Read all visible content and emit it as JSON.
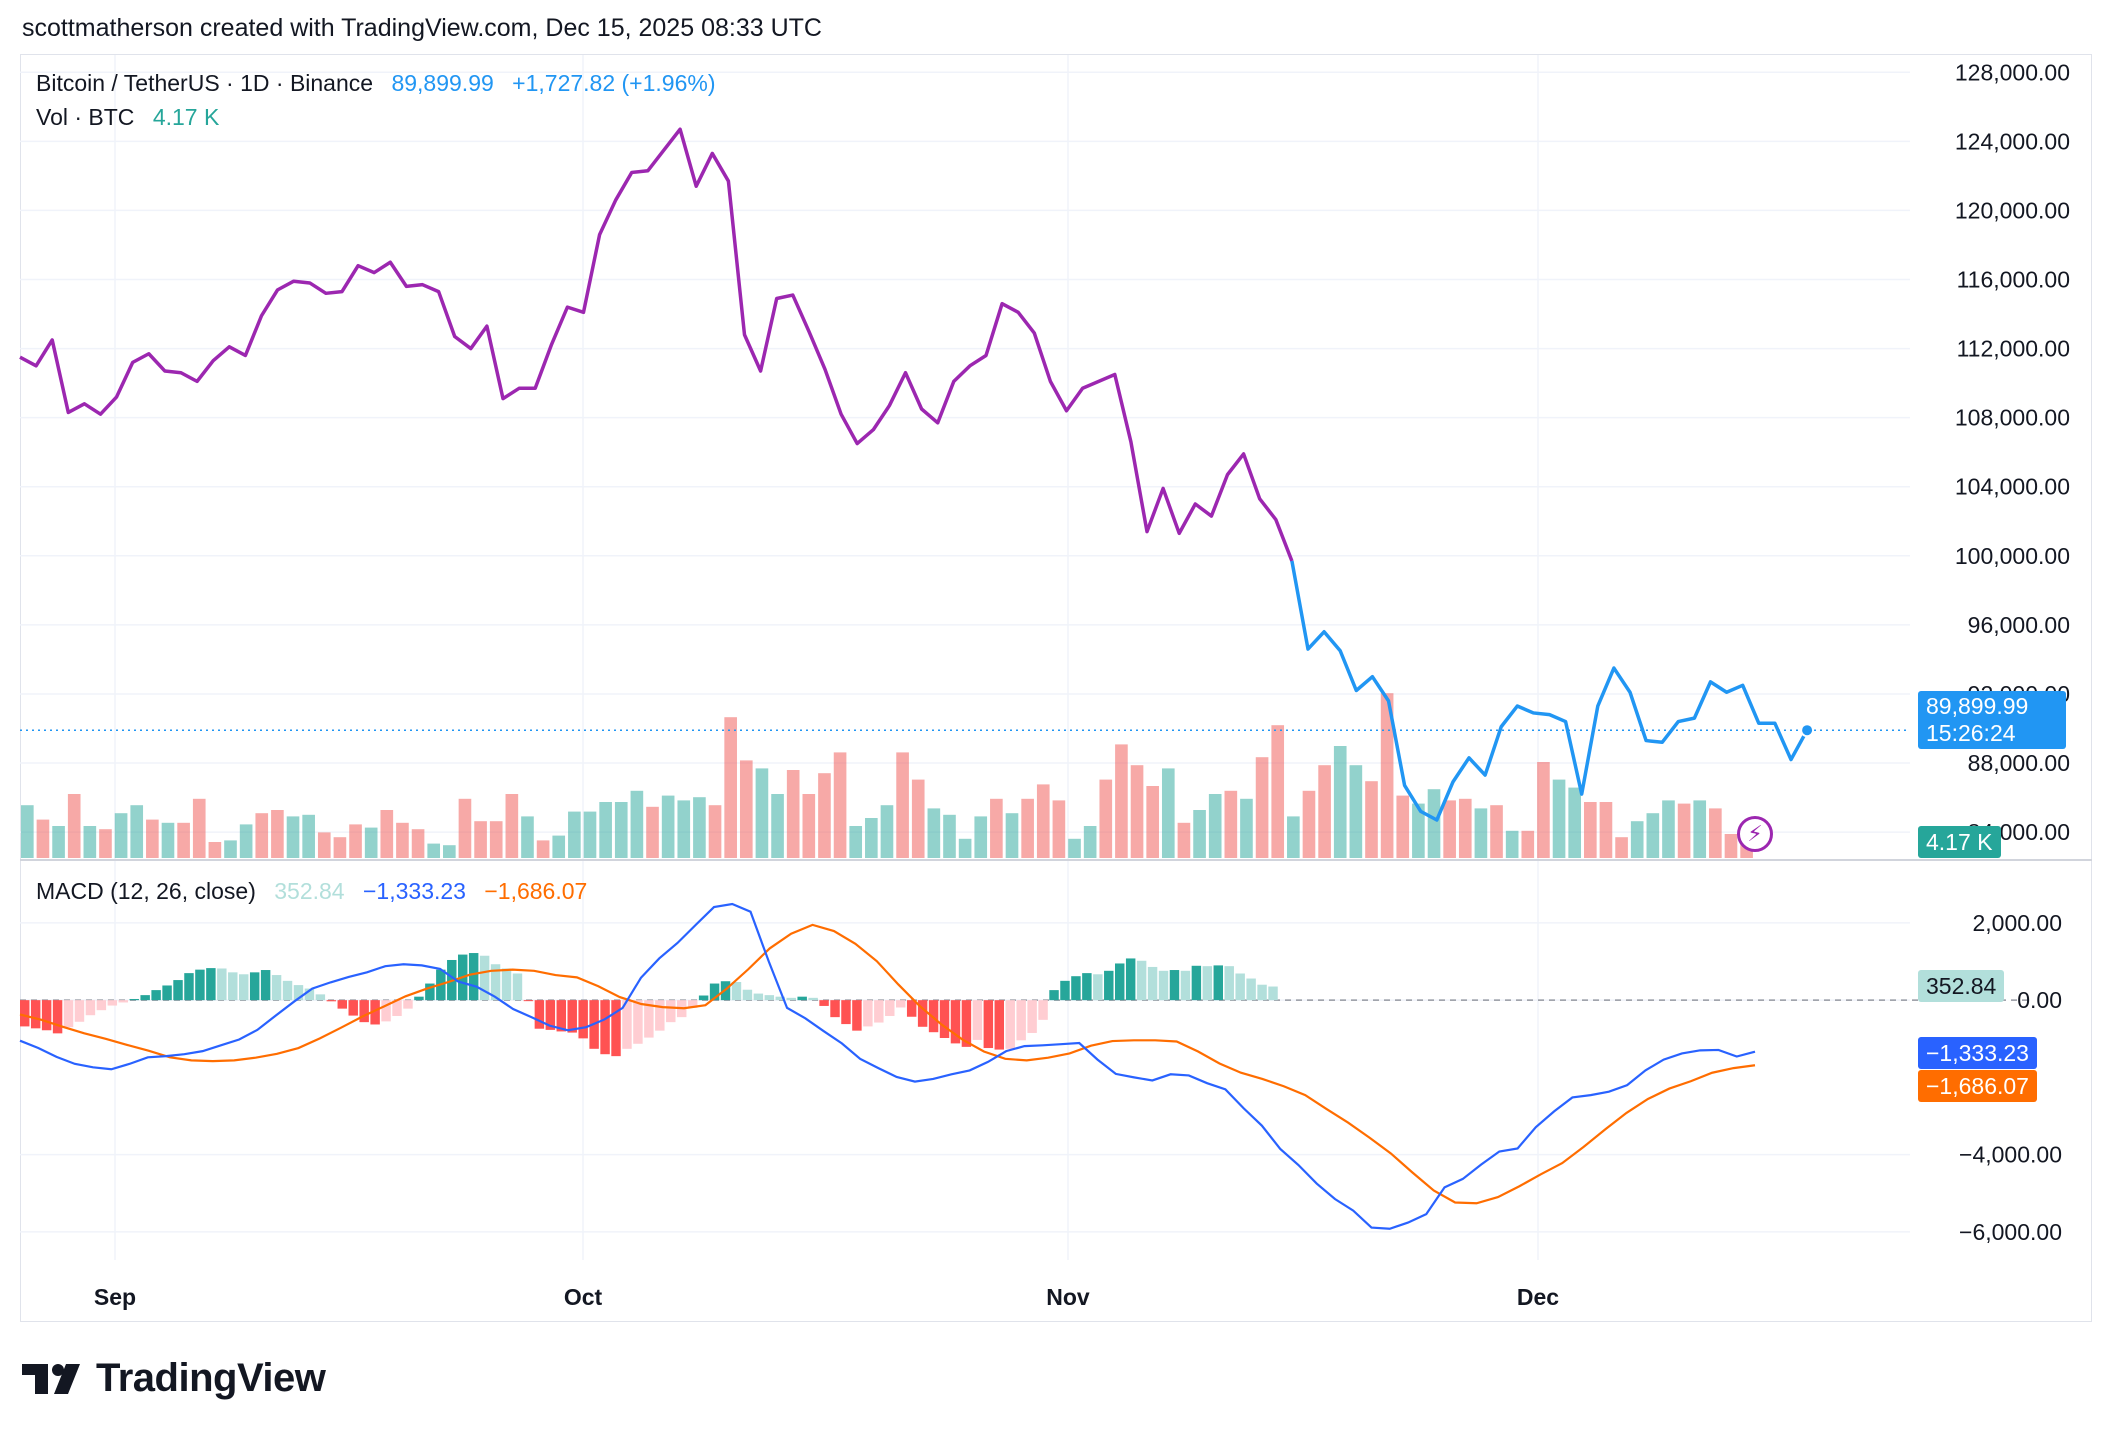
{
  "header": {
    "text": "scottmatherson created with TradingView.com, Dec 15, 2025 08:33 UTC"
  },
  "legend": {
    "symbol": "Bitcoin / TetherUS · 1D · Binance",
    "last": "89,899.99",
    "change": "+1,727.82 (+1.96%)",
    "vol_label": "Vol · BTC",
    "vol_value": "4.17 K",
    "macd_label": "MACD (12, 26, close)",
    "macd_hist": "352.84",
    "macd_line": "−1,333.23",
    "macd_signal": "−1,686.07"
  },
  "price_tag": {
    "price": "89,899.99",
    "countdown": "15:26:24"
  },
  "volume_tag": "4.17 K",
  "macd_tags": {
    "hist": "352.84",
    "macd": "−1,333.23",
    "signal": "−1,686.07"
  },
  "logo_text": "TradingView",
  "colors": {
    "purple": "#9c27b0",
    "blue": "#2196f3",
    "up": "#26a69a",
    "down": "#ef5350",
    "macd": "#2962ff",
    "signal": "#ff6d00"
  },
  "chart_data": [
    {
      "type": "line",
      "title": "Bitcoin / TetherUS · 1D · Binance",
      "x_ticks": [
        "Sep",
        "Oct",
        "Nov",
        "Dec"
      ],
      "y_ticks": [
        84000,
        88000,
        92000,
        96000,
        100000,
        104000,
        108000,
        112000,
        116000,
        120000,
        124000,
        128000
      ],
      "ylim": [
        82500,
        129000
      ],
      "series": [
        {
          "values": [
            111500,
            111000,
            112500,
            108300,
            108800,
            108200,
            109200,
            111200,
            111700,
            110700,
            110600,
            110100,
            111300,
            112100,
            111600,
            113900,
            115400,
            115900,
            115800,
            115200,
            115300,
            116800,
            116400,
            117000,
            115600,
            115700,
            115300,
            112700,
            112000,
            113300,
            109100,
            109700,
            109700,
            112200,
            114400,
            114100,
            118600,
            120600,
            122200,
            122300,
            123500,
            124700,
            121400,
            123300,
            121700,
            112800,
            110700,
            114900,
            115100,
            113000,
            110800,
            108200,
            106500,
            107300,
            108700,
            110600,
            108500,
            107700,
            110100,
            111000,
            111600,
            114600,
            114100,
            112900,
            110100,
            108400,
            109700,
            110100,
            110500,
            106600,
            101400,
            103900,
            101300,
            103000,
            102300,
            104700,
            105900,
            103300,
            102100,
            99700
          ]
        },
        {
          "values": [
            99700,
            94600,
            95600,
            94500,
            92200,
            93000,
            91600,
            86700,
            85200,
            84700,
            86900,
            88300,
            87300,
            90100,
            91300,
            90900,
            90800,
            90400,
            86200,
            91300,
            93500,
            92100,
            89300,
            89200,
            90400,
            90600,
            92700,
            92100,
            92500,
            90300,
            90300,
            88200,
            89899.99
          ]
        }
      ]
    },
    {
      "type": "bar",
      "title": "Vol · BTC",
      "volume": [
        {
          "v": 33,
          "up": true
        },
        {
          "v": 24,
          "up": false
        },
        {
          "v": 20,
          "up": true
        },
        {
          "v": 40,
          "up": false
        },
        {
          "v": 20,
          "up": true
        },
        {
          "v": 18,
          "up": false
        },
        {
          "v": 28,
          "up": true
        },
        {
          "v": 33,
          "up": true
        },
        {
          "v": 24,
          "up": false
        },
        {
          "v": 22,
          "up": true
        },
        {
          "v": 22,
          "up": false
        },
        {
          "v": 37,
          "up": false
        },
        {
          "v": 10,
          "up": false
        },
        {
          "v": 11,
          "up": true
        },
        {
          "v": 21,
          "up": true
        },
        {
          "v": 28,
          "up": false
        },
        {
          "v": 30,
          "up": false
        },
        {
          "v": 26,
          "up": true
        },
        {
          "v": 27,
          "up": true
        },
        {
          "v": 16,
          "up": false
        },
        {
          "v": 13,
          "up": false
        },
        {
          "v": 21,
          "up": false
        },
        {
          "v": 19,
          "up": true
        },
        {
          "v": 30,
          "up": false
        },
        {
          "v": 22,
          "up": false
        },
        {
          "v": 18,
          "up": false
        },
        {
          "v": 9,
          "up": true
        },
        {
          "v": 8,
          "up": true
        },
        {
          "v": 37,
          "up": false
        },
        {
          "v": 23,
          "up": false
        },
        {
          "v": 23,
          "up": false
        },
        {
          "v": 40,
          "up": false
        },
        {
          "v": 26,
          "up": true
        },
        {
          "v": 11,
          "up": false
        },
        {
          "v": 14,
          "up": true
        },
        {
          "v": 29,
          "up": true
        },
        {
          "v": 29,
          "up": true
        },
        {
          "v": 35,
          "up": true
        },
        {
          "v": 35,
          "up": true
        },
        {
          "v": 42,
          "up": true
        },
        {
          "v": 32,
          "up": false
        },
        {
          "v": 39,
          "up": true
        },
        {
          "v": 36,
          "up": true
        },
        {
          "v": 38,
          "up": true
        },
        {
          "v": 33,
          "up": false
        },
        {
          "v": 88,
          "up": false
        },
        {
          "v": 61,
          "up": false
        },
        {
          "v": 56,
          "up": true
        },
        {
          "v": 40,
          "up": true
        },
        {
          "v": 55,
          "up": false
        },
        {
          "v": 40,
          "up": false
        },
        {
          "v": 53,
          "up": false
        },
        {
          "v": 66,
          "up": false
        },
        {
          "v": 20,
          "up": true
        },
        {
          "v": 25,
          "up": true
        },
        {
          "v": 33,
          "up": true
        },
        {
          "v": 66,
          "up": false
        },
        {
          "v": 49,
          "up": false
        },
        {
          "v": 31,
          "up": true
        },
        {
          "v": 27,
          "up": true
        },
        {
          "v": 12,
          "up": true
        },
        {
          "v": 26,
          "up": true
        },
        {
          "v": 37,
          "up": false
        },
        {
          "v": 28,
          "up": true
        },
        {
          "v": 37,
          "up": false
        },
        {
          "v": 46,
          "up": false
        },
        {
          "v": 36,
          "up": false
        },
        {
          "v": 12,
          "up": true
        },
        {
          "v": 20,
          "up": true
        },
        {
          "v": 49,
          "up": false
        },
        {
          "v": 71,
          "up": false
        },
        {
          "v": 58,
          "up": false
        },
        {
          "v": 45,
          "up": false
        },
        {
          "v": 56,
          "up": true
        },
        {
          "v": 22,
          "up": false
        },
        {
          "v": 30,
          "up": true
        },
        {
          "v": 40,
          "up": true
        },
        {
          "v": 42,
          "up": false
        },
        {
          "v": 37,
          "up": true
        },
        {
          "v": 63,
          "up": false
        },
        {
          "v": 83,
          "up": false
        },
        {
          "v": 26,
          "up": true
        },
        {
          "v": 42,
          "up": false
        },
        {
          "v": 58,
          "up": false
        },
        {
          "v": 70,
          "up": true
        },
        {
          "v": 58,
          "up": true
        },
        {
          "v": 48,
          "up": false
        },
        {
          "v": 103,
          "up": false
        },
        {
          "v": 39,
          "up": false
        },
        {
          "v": 34,
          "up": true
        },
        {
          "v": 43,
          "up": true
        },
        {
          "v": 36,
          "up": false
        },
        {
          "v": 37,
          "up": false
        },
        {
          "v": 31,
          "up": true
        },
        {
          "v": 33,
          "up": false
        },
        {
          "v": 17,
          "up": true
        },
        {
          "v": 17,
          "up": false
        },
        {
          "v": 60,
          "up": false
        },
        {
          "v": 49,
          "up": true
        },
        {
          "v": 44,
          "up": true
        },
        {
          "v": 35,
          "up": false
        },
        {
          "v": 35,
          "up": false
        },
        {
          "v": 13,
          "up": false
        },
        {
          "v": 23,
          "up": true
        },
        {
          "v": 28,
          "up": true
        },
        {
          "v": 36,
          "up": true
        },
        {
          "v": 34,
          "up": false
        },
        {
          "v": 36,
          "up": true
        },
        {
          "v": 31,
          "up": false
        },
        {
          "v": 15,
          "up": false
        },
        {
          "v": 9,
          "up": false
        }
      ]
    },
    {
      "type": "bar",
      "title": "MACD (12, 26, close)",
      "y_ticks": [
        2000,
        0,
        -4000,
        -6000
      ],
      "ylim": [
        -6600,
        3500
      ],
      "histogram": [
        -680,
        -730,
        -780,
        -860,
        -700,
        -560,
        -390,
        -260,
        -140,
        -60,
        30,
        130,
        260,
        380,
        520,
        700,
        790,
        830,
        820,
        720,
        670,
        720,
        780,
        650,
        500,
        390,
        300,
        150,
        -30,
        -220,
        -400,
        -570,
        -630,
        -550,
        -410,
        -220,
        90,
        430,
        790,
        1040,
        1180,
        1220,
        1150,
        930,
        820,
        690,
        -10,
        -740,
        -770,
        -810,
        -840,
        -990,
        -1260,
        -1400,
        -1450,
        -1260,
        -1130,
        -970,
        -790,
        -570,
        -440,
        -200,
        120,
        430,
        490,
        470,
        270,
        170,
        130,
        90,
        60,
        90,
        60,
        -150,
        -440,
        -620,
        -790,
        -680,
        -580,
        -410,
        -190,
        -430,
        -690,
        -830,
        -980,
        -1120,
        -1210,
        -1030,
        -1240,
        -1280,
        -1260,
        -1040,
        -850,
        -510,
        260,
        500,
        620,
        700,
        670,
        760,
        950,
        1080,
        1020,
        860,
        760,
        780,
        760,
        890,
        880,
        900,
        880,
        690,
        560,
        400,
        352.84
      ],
      "series": [
        {
          "values": [
            -1050,
            -1240,
            -1470,
            -1650,
            -1740,
            -1790,
            -1650,
            -1480,
            -1450,
            -1400,
            -1320,
            -1170,
            -1020,
            -770,
            -400,
            -40,
            300,
            460,
            600,
            720,
            880,
            930,
            900,
            810,
            480,
            350,
            90,
            -230,
            -440,
            -660,
            -780,
            -700,
            -500,
            -200,
            580,
            1080,
            1480,
            1950,
            2410,
            2490,
            2290,
            1000,
            -200,
            -470,
            -800,
            -1120,
            -1520,
            -1760,
            -1990,
            -2110,
            -2040,
            -1920,
            -1820,
            -1600,
            -1320,
            -1190,
            -1170,
            -1140,
            -1110,
            -1540,
            -1910,
            -2000,
            -2080,
            -1920,
            -1950,
            -2150,
            -2310,
            -2800,
            -3250,
            -3850,
            -4270,
            -4750,
            -5150,
            -5450,
            -5890,
            -5920,
            -5760,
            -5540,
            -4850,
            -4630,
            -4260,
            -3920,
            -3840,
            -3290,
            -2880,
            -2520,
            -2460,
            -2370,
            -2200,
            -1820,
            -1540,
            -1380,
            -1300,
            -1290,
            -1460,
            -1333.23
          ]
        },
        {
          "values": [
            -370,
            -510,
            -690,
            -860,
            -1000,
            -1160,
            -1310,
            -1480,
            -1560,
            -1580,
            -1560,
            -1490,
            -1390,
            -1240,
            -990,
            -710,
            -420,
            -160,
            100,
            300,
            470,
            660,
            760,
            790,
            760,
            650,
            590,
            360,
            80,
            -100,
            -180,
            -210,
            -130,
            300,
            800,
            1340,
            1720,
            1950,
            1790,
            1460,
            1010,
            410,
            -150,
            -620,
            -1020,
            -1330,
            -1520,
            -1560,
            -1490,
            -1380,
            -1180,
            -1060,
            -1040,
            -1040,
            -1070,
            -1330,
            -1640,
            -1880,
            -2040,
            -2230,
            -2460,
            -2820,
            -3170,
            -3560,
            -3970,
            -4460,
            -4930,
            -5240,
            -5260,
            -5100,
            -4820,
            -4510,
            -4220,
            -3800,
            -3350,
            -2920,
            -2560,
            -2290,
            -2100,
            -1880,
            -1760,
            -1686.07
          ]
        }
      ]
    }
  ]
}
